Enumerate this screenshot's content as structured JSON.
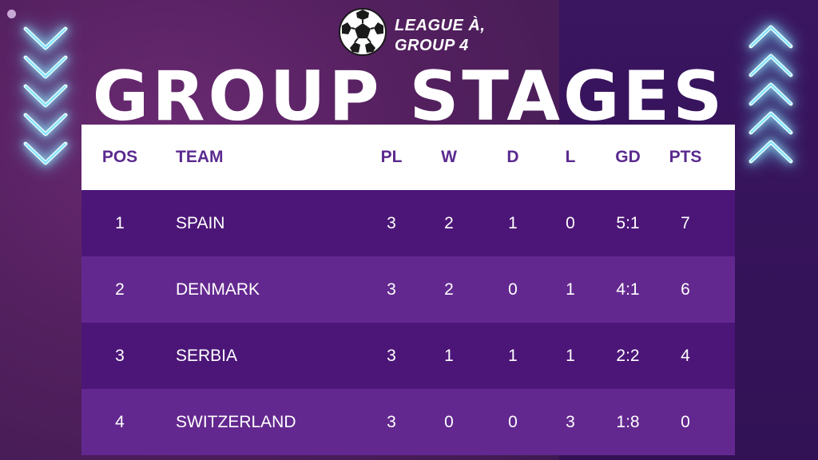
{
  "header": {
    "league_line1": "LEAGUE À,",
    "league_line2": "GROUP 4",
    "title": "GROUP STAGES"
  },
  "table": {
    "columns": {
      "pos": "POS",
      "team": "TEAM",
      "pl": "PL",
      "w": "W",
      "d": "D",
      "l": "L",
      "gd": "GD",
      "pts": "PTS"
    },
    "rows": [
      {
        "pos": "1",
        "team": "SPAIN",
        "pl": "3",
        "w": "2",
        "d": "1",
        "l": "0",
        "gd": "5:1",
        "pts": "7"
      },
      {
        "pos": "2",
        "team": "DENMARK",
        "pl": "3",
        "w": "2",
        "d": "0",
        "l": "1",
        "gd": "4:1",
        "pts": "6"
      },
      {
        "pos": "3",
        "team": "SERBIA",
        "pl": "3",
        "w": "1",
        "d": "1",
        "l": "1",
        "gd": "2:2",
        "pts": "4"
      },
      {
        "pos": "4",
        "team": "SWITZERLAND",
        "pl": "3",
        "w": "0",
        "d": "0",
        "l": "3",
        "gd": "1:8",
        "pts": "0"
      }
    ]
  },
  "icons": {
    "logo": "soccer-ball-icon",
    "left_decor": "chevron-down-icon",
    "right_decor": "chevron-up-icon"
  },
  "colors": {
    "header_text": "#5b2a8f",
    "row_dark": "#4c1678",
    "row_light": "#63288f",
    "glow": "#9ff2ff"
  }
}
